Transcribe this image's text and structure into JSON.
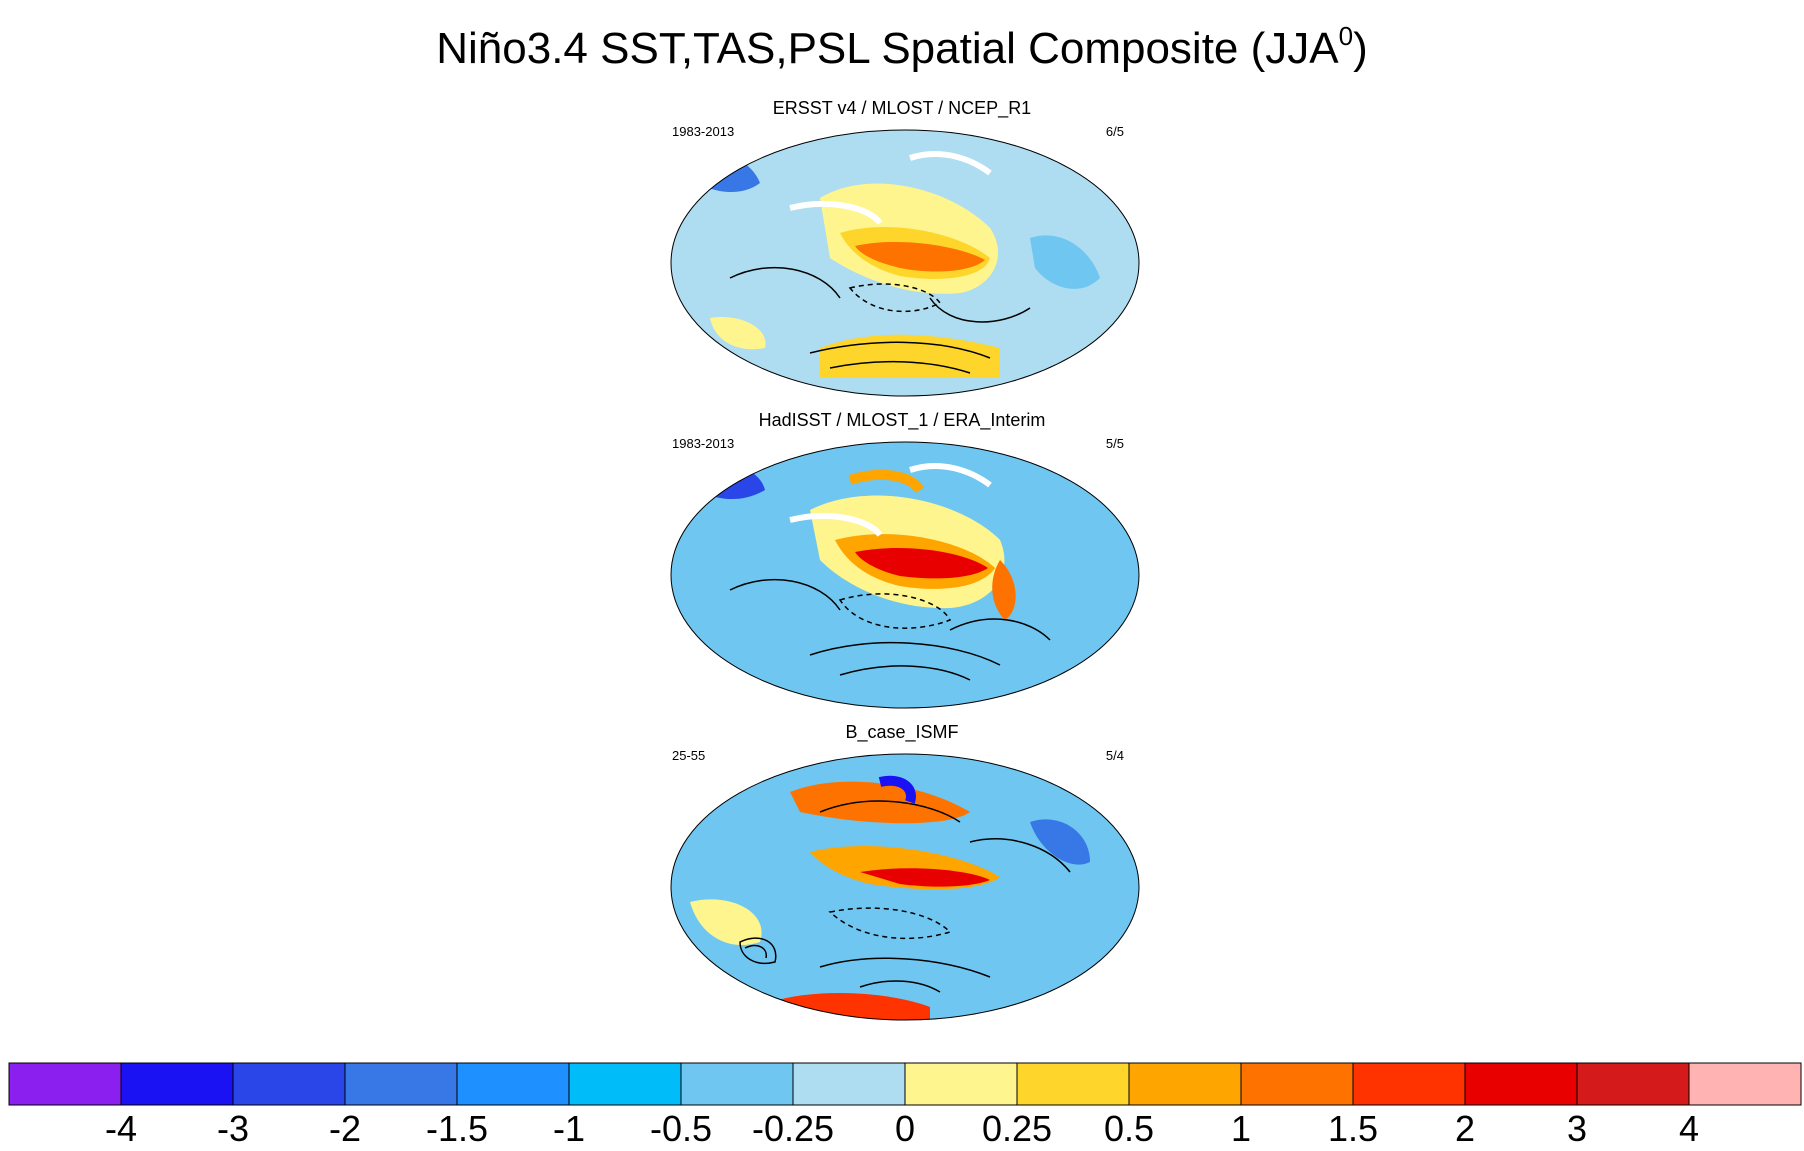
{
  "title_main": "Niño3.4 SST,TAS,PSL Spatial Composite (JJA",
  "title_sup": "0",
  "title_close": ")",
  "panels": [
    {
      "title": "ERSST v4 / MLOST / NCEP_R1",
      "years": "1983-2013",
      "count": "6/5"
    },
    {
      "title": "HadISST / MLOST_1 / ERA_Interim",
      "years": "1983-2013",
      "count": "5/5"
    },
    {
      "title": "B_case_ISMF",
      "years": "25-55",
      "count": "5/4"
    }
  ],
  "chart_data": {
    "type": "heatmap",
    "title": "Niño3.4 SST,TAS,PSL Spatial Composite (JJA0)",
    "description_of_fields": "SST/TAS shaded anomalies with PSL contours on Robinson-like global maps centered on the Pacific",
    "colorbar": {
      "boundaries": [
        "-4",
        "-3",
        "-2",
        "-1.5",
        "-1",
        "-0.5",
        "-0.25",
        "0",
        "0.25",
        "0.5",
        "1",
        "1.5",
        "2",
        "3",
        "4"
      ],
      "colors": [
        "#8a1ff0",
        "#1a12f2",
        "#2a46e8",
        "#3777e6",
        "#1e90ff",
        "#00bdfa",
        "#6fc6f0",
        "#aedcf0",
        "#fff58f",
        "#fed52a",
        "#fea500",
        "#fe7300",
        "#fe3300",
        "#e80000",
        "#d41a1a",
        "#ffb3b3"
      ]
    }
  }
}
